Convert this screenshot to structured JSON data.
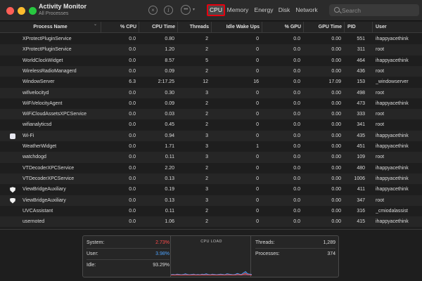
{
  "app": {
    "title": "Activity Monitor",
    "subtitle": "All Processes"
  },
  "toolbar": {
    "stop_icon": "×",
    "info_icon": "i",
    "more_icon": "•••",
    "more_caret": "▾",
    "tabs": [
      {
        "label": "CPU",
        "selected": true
      },
      {
        "label": "Memory"
      },
      {
        "label": "Energy"
      },
      {
        "label": "Disk"
      },
      {
        "label": "Network"
      }
    ],
    "search_placeholder": "Search"
  },
  "table": {
    "columns": [
      "Process Name",
      "% CPU",
      "CPU Time",
      "Threads",
      "Idle Wake Ups",
      "% GPU",
      "GPU Time",
      "PID",
      "User"
    ],
    "sort_caret": "⌄",
    "rows": [
      {
        "icon": "",
        "name": "XProtectPluginService",
        "cpu": "0.0",
        "cpu_time": "0.80",
        "threads": "2",
        "idle": "0",
        "gpu": "0.0",
        "gpu_time": "0.00",
        "pid": "551",
        "user": "ihappyacethink"
      },
      {
        "icon": "",
        "name": "XProtectPluginService",
        "cpu": "0.0",
        "cpu_time": "1.20",
        "threads": "2",
        "idle": "0",
        "gpu": "0.0",
        "gpu_time": "0.00",
        "pid": "311",
        "user": "root"
      },
      {
        "icon": "",
        "name": "WorldClockWidget",
        "cpu": "0.0",
        "cpu_time": "8.57",
        "threads": "5",
        "idle": "0",
        "gpu": "0.0",
        "gpu_time": "0.00",
        "pid": "464",
        "user": "ihappyacethink"
      },
      {
        "icon": "",
        "name": "WirelessRadioManagerd",
        "cpu": "0.0",
        "cpu_time": "0.09",
        "threads": "2",
        "idle": "0",
        "gpu": "0.0",
        "gpu_time": "0.00",
        "pid": "436",
        "user": "root"
      },
      {
        "icon": "",
        "name": "WindowServer",
        "cpu": "6.3",
        "cpu_time": "2:17.25",
        "threads": "12",
        "idle": "16",
        "gpu": "0.0",
        "gpu_time": "17.09",
        "pid": "153",
        "user": "_windowserver"
      },
      {
        "icon": "",
        "name": "wifivelocityd",
        "cpu": "0.0",
        "cpu_time": "0.30",
        "threads": "3",
        "idle": "0",
        "gpu": "0.0",
        "gpu_time": "0.00",
        "pid": "498",
        "user": "root"
      },
      {
        "icon": "",
        "name": "WiFiVelocityAgent",
        "cpu": "0.0",
        "cpu_time": "0.09",
        "threads": "2",
        "idle": "0",
        "gpu": "0.0",
        "gpu_time": "0.00",
        "pid": "473",
        "user": "ihappyacethink"
      },
      {
        "icon": "",
        "name": "WiFiCloudAssetsXPCService",
        "cpu": "0.0",
        "cpu_time": "0.03",
        "threads": "2",
        "idle": "0",
        "gpu": "0.0",
        "gpu_time": "0.00",
        "pid": "333",
        "user": "root"
      },
      {
        "icon": "",
        "name": "wifianalyticsd",
        "cpu": "0.0",
        "cpu_time": "0.45",
        "threads": "2",
        "idle": "0",
        "gpu": "0.0",
        "gpu_time": "0.00",
        "pid": "341",
        "user": "root"
      },
      {
        "icon": "square",
        "name": "Wi-Fi",
        "cpu": "0.0",
        "cpu_time": "0.94",
        "threads": "3",
        "idle": "0",
        "gpu": "0.0",
        "gpu_time": "0.00",
        "pid": "435",
        "user": "ihappyacethink"
      },
      {
        "icon": "",
        "name": "WeatherWidget",
        "cpu": "0.0",
        "cpu_time": "1.71",
        "threads": "3",
        "idle": "1",
        "gpu": "0.0",
        "gpu_time": "0.00",
        "pid": "451",
        "user": "ihappyacethink"
      },
      {
        "icon": "",
        "name": "watchdogd",
        "cpu": "0.0",
        "cpu_time": "0.11",
        "threads": "3",
        "idle": "0",
        "gpu": "0.0",
        "gpu_time": "0.00",
        "pid": "109",
        "user": "root"
      },
      {
        "icon": "",
        "name": "VTDecoderXPCService",
        "cpu": "0.0",
        "cpu_time": "2.20",
        "threads": "2",
        "idle": "0",
        "gpu": "0.0",
        "gpu_time": "0.00",
        "pid": "480",
        "user": "ihappyacethink"
      },
      {
        "icon": "",
        "name": "VTDecoderXPCService",
        "cpu": "0.0",
        "cpu_time": "0.13",
        "threads": "2",
        "idle": "0",
        "gpu": "0.0",
        "gpu_time": "0.00",
        "pid": "1006",
        "user": "ihappyacethink"
      },
      {
        "icon": "shield",
        "name": "ViewBridgeAuxiliary",
        "cpu": "0.0",
        "cpu_time": "0.19",
        "threads": "3",
        "idle": "0",
        "gpu": "0.0",
        "gpu_time": "0.00",
        "pid": "411",
        "user": "ihappyacethink"
      },
      {
        "icon": "shield",
        "name": "ViewBridgeAuxiliary",
        "cpu": "0.0",
        "cpu_time": "0.13",
        "threads": "3",
        "idle": "0",
        "gpu": "0.0",
        "gpu_time": "0.00",
        "pid": "347",
        "user": "root"
      },
      {
        "icon": "",
        "name": "UVCAssistant",
        "cpu": "0.0",
        "cpu_time": "0.11",
        "threads": "2",
        "idle": "0",
        "gpu": "0.0",
        "gpu_time": "0.00",
        "pid": "316",
        "user": "_cmiodalassist"
      },
      {
        "icon": "",
        "name": "usernoted",
        "cpu": "0.0",
        "cpu_time": "1.06",
        "threads": "2",
        "idle": "0",
        "gpu": "0.0",
        "gpu_time": "0.00",
        "pid": "415",
        "user": "ihappyacethink"
      }
    ]
  },
  "stats": {
    "system_label": "System:",
    "system_value": "2.73%",
    "system_color": "#ff4b4b",
    "user_label": "User:",
    "user_value": "3.98%",
    "user_color": "#4da3ff",
    "idle_label": "Idle:",
    "idle_value": "93.29%",
    "cpu_load_title": "CPU LOAD",
    "threads_label": "Threads:",
    "threads_value": "1,289",
    "processes_label": "Processes:",
    "processes_value": "374"
  },
  "cpu_load_samples": [
    0.02,
    0.03,
    0.02,
    0.04,
    0.03,
    0.02,
    0.03,
    0.05,
    0.03,
    0.02,
    0.03,
    0.04,
    0.02,
    0.03,
    0.02,
    0.04,
    0.03,
    0.05,
    0.03,
    0.02,
    0.04,
    0.03,
    0.02,
    0.03,
    0.04,
    0.03,
    0.02,
    0.05,
    0.04,
    0.03,
    0.02,
    0.03,
    0.06,
    0.04,
    0.03,
    0.08,
    0.12,
    0.05,
    0.04,
    0.03
  ],
  "cpu_load_system_samples": [
    0.01,
    0.01,
    0.01,
    0.02,
    0.01,
    0.01,
    0.01,
    0.02,
    0.01,
    0.01,
    0.01,
    0.02,
    0.01,
    0.01,
    0.01,
    0.02,
    0.01,
    0.02,
    0.01,
    0.01,
    0.02,
    0.01,
    0.01,
    0.01,
    0.02,
    0.01,
    0.01,
    0.02,
    0.02,
    0.01,
    0.01,
    0.01,
    0.03,
    0.02,
    0.01,
    0.04,
    0.06,
    0.02,
    0.02,
    0.01
  ],
  "colors": {
    "accent_highlight": "#e6000f",
    "user_line": "#4da3ff",
    "system_line": "#ff4b4b"
  }
}
